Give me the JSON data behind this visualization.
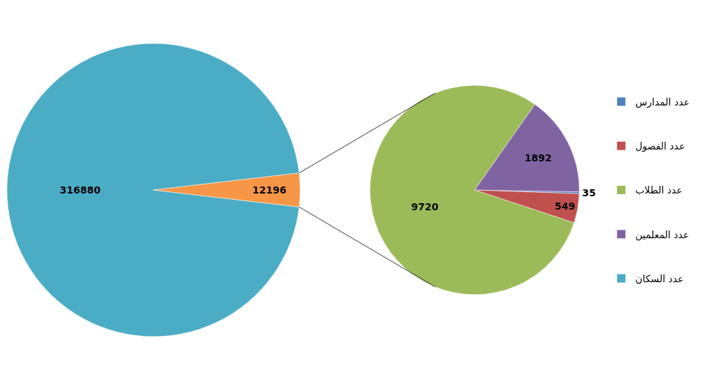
{
  "chart_data": [
    {
      "type": "pie",
      "categories": [
        "عدد السكان",
        null
      ],
      "values": [
        316880,
        12196
      ],
      "colors": [
        "#4bacc6",
        "#f79646"
      ],
      "data_labels": true,
      "legend": "right"
    },
    {
      "type": "pie",
      "categories": [
        "عدد المدارس",
        "عدد الفصول",
        "عدد الطلاب",
        "عدد المعلمين"
      ],
      "values": [
        35,
        549,
        9720,
        1892
      ],
      "colors": [
        "#4f81bd",
        "#c0504d",
        "#9bbb59",
        "#8064a2"
      ],
      "data_labels": true,
      "legend": "right"
    }
  ]
}
